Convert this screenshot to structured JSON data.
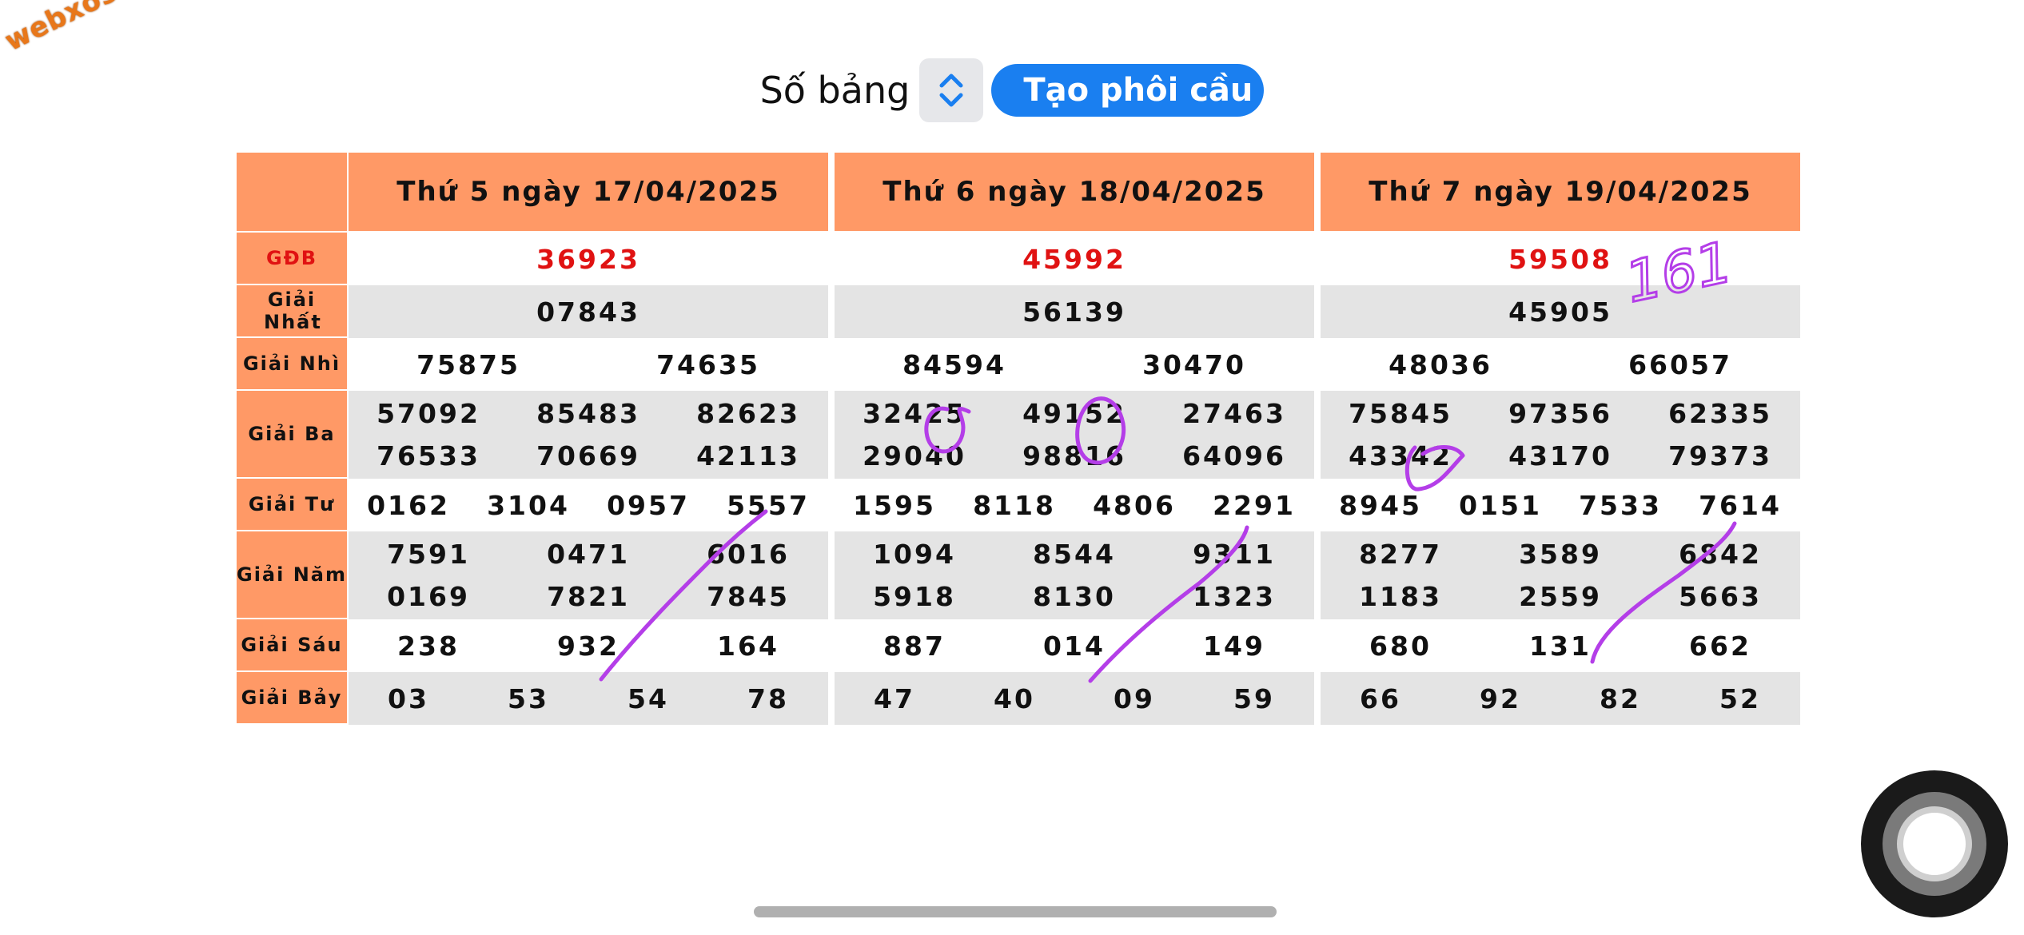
{
  "watermark": "webxoso.net",
  "controls": {
    "so_bang_label": "Số bảng",
    "stepper_icon": "chevron-up-down-icon",
    "create_button": "Tạo phôi cầu"
  },
  "labels": {
    "gdb": "GĐB",
    "g1": "Giải Nhất",
    "g2": "Giải Nhì",
    "g3": "Giải Ba",
    "g4": "Giải Tư",
    "g5": "Giải Năm",
    "g6": "Giải Sáu",
    "g7": "Giải Bảy"
  },
  "days": [
    {
      "title": "Thứ 5 ngày 17/04/2025",
      "gdb": "36923",
      "g1": "07843",
      "g2": [
        "75875",
        "74635"
      ],
      "g3": [
        [
          "57092",
          "85483",
          "82623"
        ],
        [
          "76533",
          "70669",
          "42113"
        ]
      ],
      "g4": [
        "0162",
        "3104",
        "0957",
        "5557"
      ],
      "g5": [
        [
          "7591",
          "0471",
          "6016"
        ],
        [
          "0169",
          "7821",
          "7845"
        ]
      ],
      "g6": [
        "238",
        "932",
        "164"
      ],
      "g7": [
        "03",
        "53",
        "54",
        "78"
      ]
    },
    {
      "title": "Thứ 6 ngày 18/04/2025",
      "gdb": "45992",
      "g1": "56139",
      "g2": [
        "84594",
        "30470"
      ],
      "g3": [
        [
          "32425",
          "49152",
          "27463"
        ],
        [
          "29040",
          "98816",
          "64096"
        ]
      ],
      "g4": [
        "1595",
        "8118",
        "4806",
        "2291"
      ],
      "g5": [
        [
          "1094",
          "8544",
          "9311"
        ],
        [
          "5918",
          "8130",
          "1323"
        ]
      ],
      "g6": [
        "887",
        "014",
        "149"
      ],
      "g7": [
        "47",
        "40",
        "09",
        "59"
      ]
    },
    {
      "title": "Thứ 7 ngày 19/04/2025",
      "gdb": "59508",
      "g1": "45905",
      "g2": [
        "48036",
        "66057"
      ],
      "g3": [
        [
          "75845",
          "97356",
          "62335"
        ],
        [
          "43342",
          "43170",
          "79373"
        ]
      ],
      "g4": [
        "8945",
        "0151",
        "7533",
        "7614"
      ],
      "g5": [
        [
          "8277",
          "3589",
          "6842"
        ],
        [
          "1183",
          "2559",
          "5663"
        ]
      ],
      "g6": [
        "680",
        "131",
        "662"
      ],
      "g7": [
        "66",
        "92",
        "82",
        "52"
      ]
    }
  ],
  "annotation_text": "161",
  "colors": {
    "header_orange": "#ff9966",
    "special_red": "#e01212",
    "button_blue": "#1a7ff0",
    "ink_purple": "#b43ee8",
    "row_grey": "#e4e4e4"
  }
}
